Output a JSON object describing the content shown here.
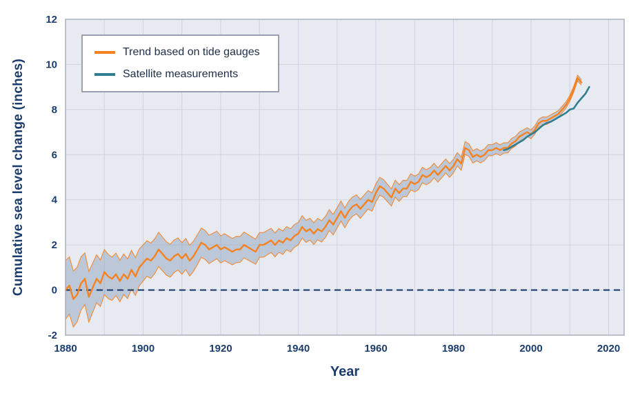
{
  "chart_data": {
    "type": "line",
    "title": "",
    "xlabel": "Year",
    "ylabel": "Cumulative sea level change (inches)",
    "xlim": [
      1880,
      2024
    ],
    "ylim": [
      -2,
      12
    ],
    "x_ticks": [
      1880,
      1900,
      1920,
      1940,
      1960,
      1980,
      2000,
      2020
    ],
    "y_ticks": [
      -2,
      0,
      2,
      4,
      6,
      8,
      10,
      12
    ],
    "x_grid_step": 10,
    "x_grid_end": 2020,
    "y_grid_step": 2,
    "grid": true,
    "legend_position": "top-left",
    "zero_line": {
      "value": 0,
      "style": "dashed"
    },
    "colors": {
      "text": "#1b3d6d",
      "plot_bg": "#e8eaf1",
      "grid": "#cdd3e0",
      "border": "#a9b0bf",
      "band_fill": "#8fa3c0",
      "zero_line": "#1b3d6d",
      "legend_border": "#9aa1ae",
      "tide_gauge": "#f58220",
      "satellite": "#2e7e91"
    },
    "series": [
      {
        "name": "Trend based on tide gauges",
        "color": "#f58220",
        "start_year": 1880,
        "end_year": 2013,
        "values": [
          0.0,
          0.2,
          -0.4,
          -0.2,
          0.3,
          0.5,
          -0.3,
          0.1,
          0.5,
          0.3,
          0.8,
          0.6,
          0.5,
          0.7,
          0.4,
          0.7,
          0.5,
          0.9,
          0.6,
          1.0,
          1.2,
          1.4,
          1.3,
          1.5,
          1.8,
          1.6,
          1.4,
          1.3,
          1.5,
          1.6,
          1.4,
          1.6,
          1.3,
          1.5,
          1.8,
          2.1,
          2.0,
          1.8,
          1.9,
          2.0,
          1.8,
          1.9,
          1.8,
          1.7,
          1.8,
          1.8,
          2.0,
          1.9,
          1.8,
          1.7,
          2.0,
          2.0,
          2.1,
          2.2,
          2.0,
          2.2,
          2.1,
          2.3,
          2.2,
          2.4,
          2.5,
          2.8,
          2.6,
          2.7,
          2.5,
          2.7,
          2.6,
          2.8,
          3.1,
          2.9,
          3.2,
          3.5,
          3.2,
          3.5,
          3.7,
          3.8,
          3.6,
          3.8,
          4.0,
          3.9,
          4.3,
          4.6,
          4.5,
          4.3,
          4.1,
          4.5,
          4.3,
          4.5,
          4.5,
          4.8,
          4.7,
          4.8,
          5.1,
          5.0,
          5.1,
          5.3,
          5.1,
          5.3,
          5.5,
          5.3,
          5.5,
          5.8,
          5.6,
          6.3,
          6.2,
          5.9,
          6.0,
          5.9,
          6.0,
          6.2,
          6.2,
          6.3,
          6.2,
          6.3,
          6.3,
          6.5,
          6.6,
          6.8,
          6.9,
          7.0,
          6.9,
          7.1,
          7.4,
          7.5,
          7.5,
          7.6,
          7.7,
          7.8,
          8.0,
          8.2,
          8.5,
          8.9,
          9.4,
          9.2
        ]
      },
      {
        "name": "Satellite measurements",
        "color": "#2e7e91",
        "start_year": 1993,
        "end_year": 2015,
        "values": [
          6.2,
          6.25,
          6.35,
          6.45,
          6.55,
          6.65,
          6.8,
          6.9,
          7.0,
          7.15,
          7.3,
          7.4,
          7.45,
          7.55,
          7.65,
          7.75,
          7.85,
          8.0,
          8.05,
          8.3,
          8.5,
          8.7,
          9.0
        ]
      }
    ],
    "band_anchors": {
      "years": [
        1880,
        1890,
        1900,
        1920,
        1940,
        1960,
        1980,
        1995,
        2005,
        2013
      ],
      "halfwidth": [
        1.3,
        1.0,
        0.8,
        0.6,
        0.5,
        0.4,
        0.3,
        0.22,
        0.16,
        0.12
      ]
    }
  }
}
